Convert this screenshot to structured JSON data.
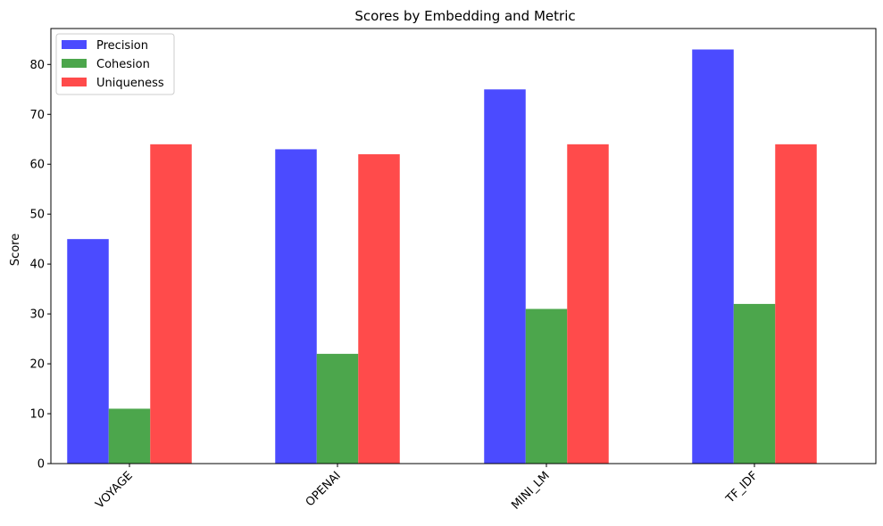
{
  "chart_data": {
    "type": "bar",
    "title": "Scores by Embedding and Metric",
    "xlabel": "",
    "ylabel": "Score",
    "categories": [
      "VOYAGE",
      "OPENAI",
      "MINI_LM",
      "TF_IDF"
    ],
    "series": [
      {
        "name": "Precision",
        "values": [
          45,
          63,
          75,
          83
        ],
        "color": "#4b4bff"
      },
      {
        "name": "Cohesion",
        "values": [
          11,
          22,
          31,
          32
        ],
        "color": "#4ca64c"
      },
      {
        "name": "Uniqueness",
        "values": [
          64,
          62,
          64,
          64
        ],
        "color": "#ff4b4b"
      }
    ],
    "ylim": [
      0,
      87.2
    ],
    "yticks": [
      0,
      10,
      20,
      30,
      40,
      50,
      60,
      70,
      80
    ],
    "legend_position": "top-left",
    "grid": false
  }
}
